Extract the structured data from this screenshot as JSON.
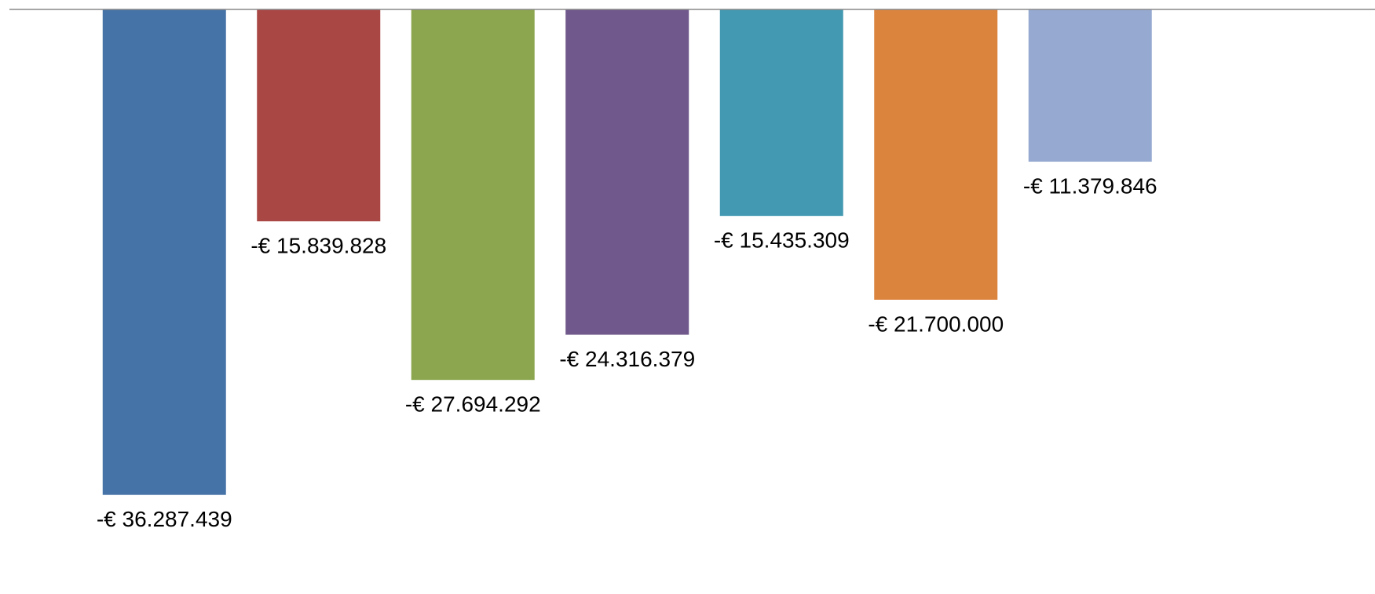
{
  "chart_data": {
    "type": "bar",
    "values": [
      -36287439,
      -15839828,
      -27694292,
      -24316379,
      -15435309,
      -21700000,
      -11379846
    ],
    "value_labels": [
      "-€ 36.287.439",
      "-€ 15.839.828",
      "-€ 27.694.292",
      "-€ 24.316.379",
      "-€ 15.435.309",
      "-€ 21.700.000",
      "-€ 11.379.846"
    ],
    "colors": [
      "#4673a7",
      "#a94745",
      "#8ba64e",
      "#70588c",
      "#4299b1",
      "#db843e",
      "#95a9d1"
    ],
    "ylim": [
      -40000000,
      0
    ]
  }
}
